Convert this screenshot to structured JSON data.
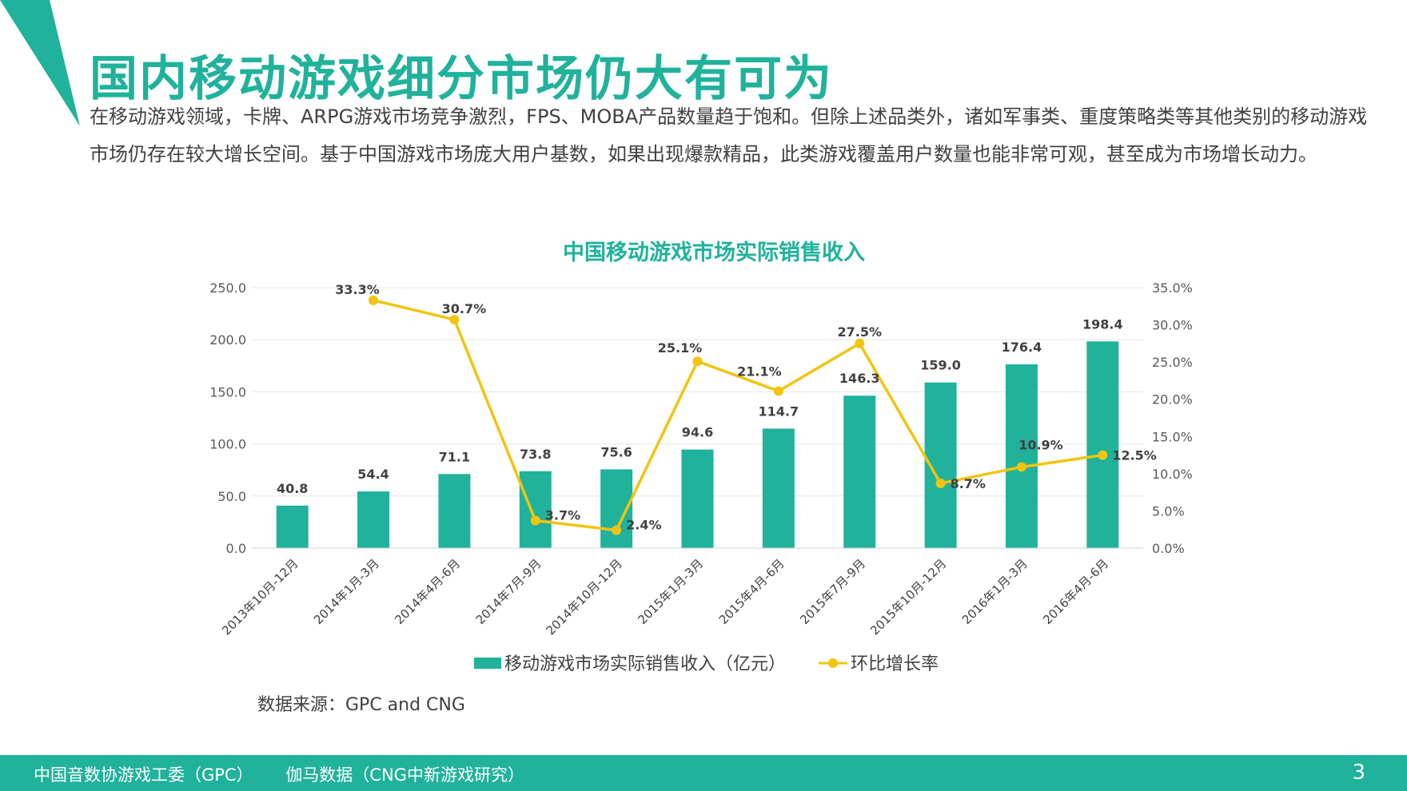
{
  "page": {
    "title": "国内移动游戏细分市场仍大有可为",
    "intro": "在移动游戏领域，卡牌、ARPG游戏市场竞争激烈，FPS、MOBA产品数量趋于饱和。但除上述品类外，诸如军事类、重度策略类等其他类别的移动游戏市场仍存在较大增长空间。基于中国游戏市场庞大用户基数，如果出现爆款精品，此类游戏覆盖用户数量也能非常可观，甚至成为市场增长动力。",
    "source": "数据来源：GPC and CNG",
    "page_number": "3"
  },
  "footer": {
    "org1": "中国音数协游戏工委（GPC）",
    "org2": "伽马数据（CNG中新游戏研究）"
  },
  "colors": {
    "accent": "#20b29b",
    "bar": "#20b29b",
    "line": "#f2c40f",
    "text": "#404040",
    "grid": "#e6e6e6"
  },
  "chart_data": {
    "type": "bar+line",
    "title": "中国移动游戏市场实际销售收入",
    "categories": [
      "2013年10月-12月",
      "2014年1月-3月",
      "2014年4月-6月",
      "2014年7月-9月",
      "2014年10月-12月",
      "2015年1月-3月",
      "2015年4月-6月",
      "2015年7月-9月",
      "2015年10月-12月",
      "2016年1月-3月",
      "2016年4月-6月"
    ],
    "series": [
      {
        "name": "移动游戏市场实际销售收入（亿元）",
        "type": "bar",
        "axis": "left",
        "values": [
          40.8,
          54.4,
          71.1,
          73.8,
          75.6,
          94.6,
          114.7,
          146.3,
          159.0,
          176.4,
          198.4
        ],
        "labels": [
          "40.8",
          "54.4",
          "71.1",
          "73.8",
          "75.6",
          "94.6",
          "114.7",
          "146.3",
          "159.0",
          "176.4",
          "198.4"
        ]
      },
      {
        "name": "环比增长率",
        "type": "line",
        "axis": "right",
        "values": [
          null,
          33.3,
          30.7,
          3.7,
          2.4,
          25.1,
          21.1,
          27.5,
          8.7,
          10.9,
          12.5
        ],
        "labels": [
          null,
          "33.3%",
          "30.7%",
          "3.7%",
          "2.4%",
          "25.1%",
          "21.1%",
          "27.5%",
          "8.7%",
          "10.9%",
          "12.5%"
        ]
      }
    ],
    "y_left": {
      "min": 0,
      "max": 250,
      "ticks": [
        "0.0",
        "50.0",
        "100.0",
        "150.0",
        "200.0",
        "250.0"
      ]
    },
    "y_right": {
      "min": 0,
      "max": 35,
      "ticks": [
        "0.0%",
        "5.0%",
        "10.0%",
        "15.0%",
        "20.0%",
        "25.0%",
        "30.0%",
        "35.0%"
      ]
    },
    "grid": true,
    "legend": "bottom-center"
  }
}
